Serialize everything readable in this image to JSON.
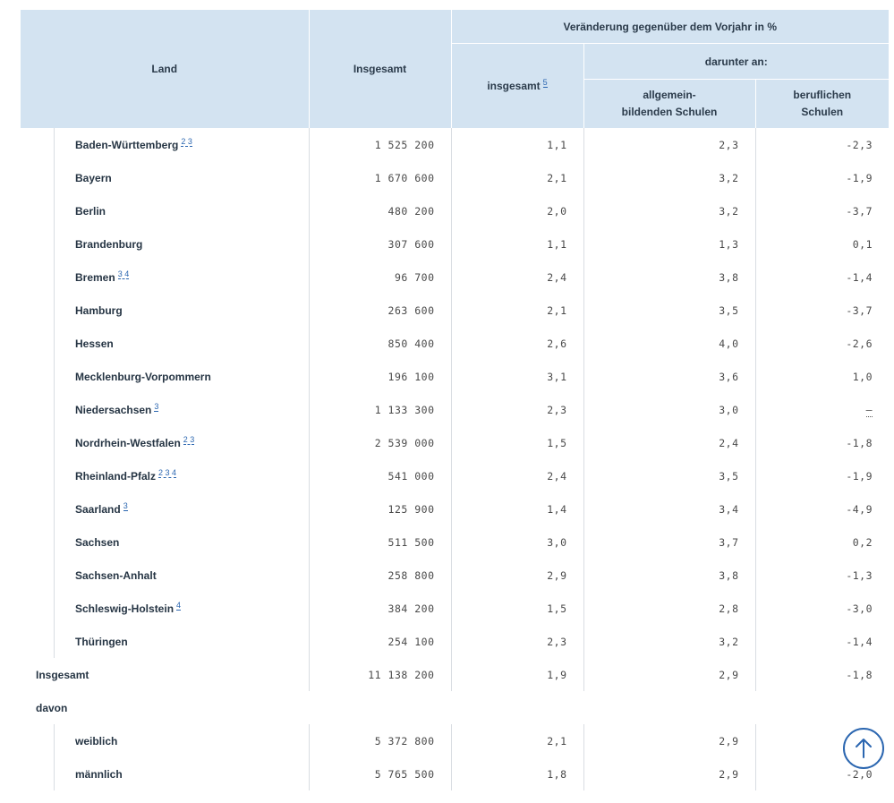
{
  "header": {
    "land": "Land",
    "insgesamt": "Insgesamt",
    "change_group": "Veränderung gegenüber dem Vorjahr in %",
    "change_total": "insgesamt",
    "change_total_fn": "5",
    "darunter": "darunter an:",
    "allg_line1": "allgemein-",
    "allg_line2": "bildenden Schulen",
    "beruf_line1": "beruflichen",
    "beruf_line2": "Schulen"
  },
  "rows": [
    {
      "land": "Baden-Württemberg",
      "fn": "2 3",
      "total": "1 525 200",
      "chg": "1,1",
      "allg": "2,3",
      "beruf": "-2,3"
    },
    {
      "land": "Bayern",
      "fn": "",
      "total": "1 670 600",
      "chg": "2,1",
      "allg": "3,2",
      "beruf": "-1,9"
    },
    {
      "land": "Berlin",
      "fn": "",
      "total": "480 200",
      "chg": "2,0",
      "allg": "3,2",
      "beruf": "-3,7"
    },
    {
      "land": "Brandenburg",
      "fn": "",
      "total": "307 600",
      "chg": "1,1",
      "allg": "1,3",
      "beruf": "0,1"
    },
    {
      "land": "Bremen",
      "fn": "3 4",
      "total": "96 700",
      "chg": "2,4",
      "allg": "3,8",
      "beruf": "-1,4"
    },
    {
      "land": "Hamburg",
      "fn": "",
      "total": "263 600",
      "chg": "2,1",
      "allg": "3,5",
      "beruf": "-3,7"
    },
    {
      "land": "Hessen",
      "fn": "",
      "total": "850 400",
      "chg": "2,6",
      "allg": "4,0",
      "beruf": "-2,6"
    },
    {
      "land": "Mecklenburg-Vorpommern",
      "fn": "",
      "total": "196 100",
      "chg": "3,1",
      "allg": "3,6",
      "beruf": "1,0"
    },
    {
      "land": "Niedersachsen",
      "fn": "3",
      "total": "1 133 300",
      "chg": "2,3",
      "allg": "3,0",
      "beruf": "–"
    },
    {
      "land": "Nordrhein-Westfalen",
      "fn": "2 3",
      "total": "2 539 000",
      "chg": "1,5",
      "allg": "2,4",
      "beruf": "-1,8"
    },
    {
      "land": "Rheinland-Pfalz",
      "fn": "2 3 4",
      "total": "541 000",
      "chg": "2,4",
      "allg": "3,5",
      "beruf": "-1,9"
    },
    {
      "land": "Saarland",
      "fn": "3",
      "total": "125 900",
      "chg": "1,4",
      "allg": "3,4",
      "beruf": "-4,9"
    },
    {
      "land": "Sachsen",
      "fn": "",
      "total": "511 500",
      "chg": "3,0",
      "allg": "3,7",
      "beruf": "0,2"
    },
    {
      "land": "Sachsen-Anhalt",
      "fn": "",
      "total": "258 800",
      "chg": "2,9",
      "allg": "3,8",
      "beruf": "-1,3"
    },
    {
      "land": "Schleswig-Holstein",
      "fn": "4",
      "total": "384 200",
      "chg": "1,5",
      "allg": "2,8",
      "beruf": "-3,0"
    },
    {
      "land": "Thüringen",
      "fn": "",
      "total": "254 100",
      "chg": "2,3",
      "allg": "3,2",
      "beruf": "-1,4"
    }
  ],
  "insgesamt_row": {
    "land": "Insgesamt",
    "total": "11 138 200",
    "chg": "1,9",
    "allg": "2,9",
    "beruf": "-1,8"
  },
  "davon_label": "davon",
  "sub_rows": [
    {
      "land": "weiblich",
      "total": "5 372 800",
      "chg": "2,1",
      "allg": "2,9",
      "beruf": ""
    },
    {
      "land": "männlich",
      "total": "5 765 500",
      "chg": "1,8",
      "allg": "2,9",
      "beruf": "-2,0"
    }
  ],
  "scroll_top_icon": "arrow-up-icon"
}
